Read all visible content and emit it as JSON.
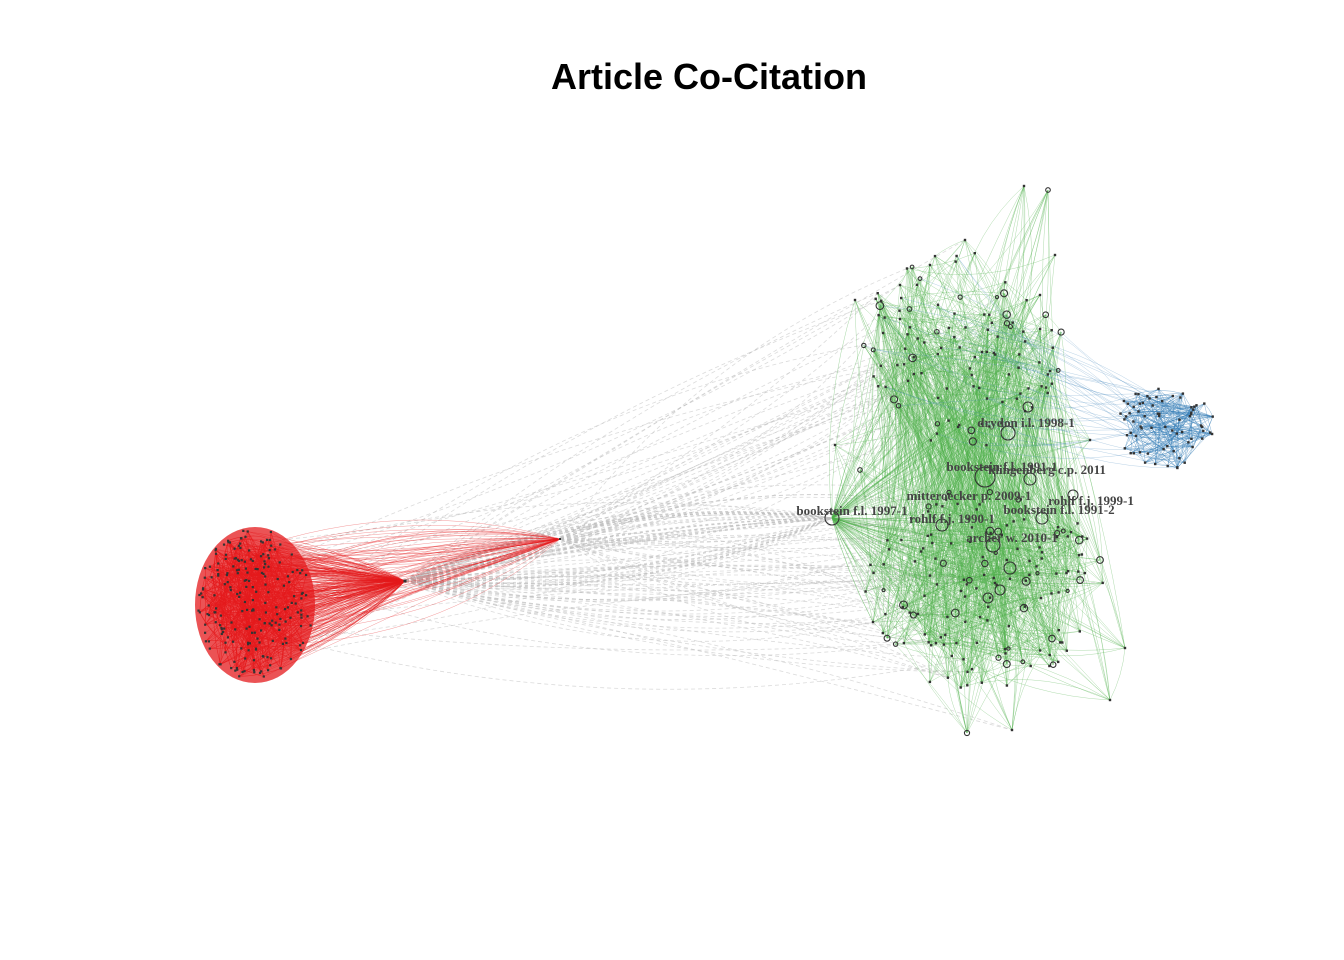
{
  "title": "Article Co-Citation",
  "colors": {
    "cluster_red": "#e41a1c",
    "cluster_green": "#4daf4a",
    "cluster_blue": "#377eb8",
    "inter_cluster_edge": "#bdbdbd",
    "node_fill": "#333333"
  },
  "clusters": [
    {
      "name": "red",
      "color": "#e41a1c"
    },
    {
      "name": "green",
      "color": "#4daf4a"
    },
    {
      "name": "blue",
      "color": "#377eb8"
    }
  ],
  "labels": [
    {
      "text": "drydon i.l. 1998-1"
    },
    {
      "text": "bookstein f.l. 1991-1"
    },
    {
      "text": "klingenberg c.p. 2011"
    },
    {
      "text": "mitteroecker p. 2009-1"
    },
    {
      "text": "rohlf f.j. 1999-1"
    },
    {
      "text": "bookstein f.l. 1997-1"
    },
    {
      "text": "rohlf f.j. 1990-1"
    },
    {
      "text": "bookstein f.l. 1991-2"
    },
    {
      "text": "archer w. 2010-1"
    }
  ]
}
